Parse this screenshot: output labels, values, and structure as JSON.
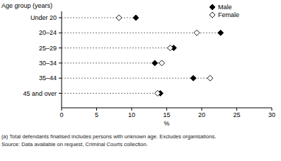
{
  "chart_data": {
    "type": "dot",
    "orientation": "horizontal",
    "y_label": "Age group (years)",
    "x_label": "%",
    "categories": [
      "Under 20",
      "20–24",
      "25–29",
      "30–34",
      "35–44",
      "45 and over"
    ],
    "series": [
      {
        "name": "Male",
        "color": "#000000",
        "marker": "diamond",
        "values": [
          10.6,
          22.7,
          16.0,
          13.3,
          18.8,
          14.1
        ]
      },
      {
        "name": "Female",
        "color": "#ffffff",
        "marker": "diamond",
        "values": [
          8.2,
          19.3,
          15.5,
          14.3,
          21.2,
          13.7
        ]
      }
    ],
    "xlim": [
      0,
      30
    ],
    "xticks": [
      0,
      5,
      10,
      15,
      20,
      25,
      30
    ],
    "legend": "top-right",
    "line_style": "dashed",
    "footnotes": [
      "(a) Total defendants finalised includes persons with unknown age. Excludes organisations.",
      "Source: Data available on request, Criminal Courts collection."
    ]
  }
}
